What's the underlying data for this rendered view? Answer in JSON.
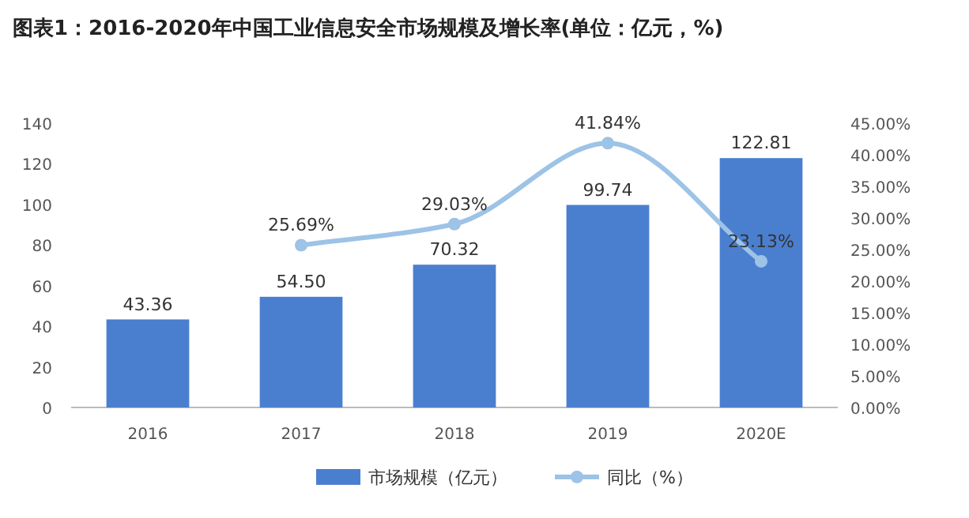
{
  "chart_data": {
    "type": "bar",
    "title": "图表1：2016-2020年中国工业信息安全市场规模及增长率(单位：亿元，%)",
    "categories": [
      "2016",
      "2017",
      "2018",
      "2019",
      "2020E"
    ],
    "series": [
      {
        "name": "市场规模（亿元）",
        "color": "#4a7fd0",
        "values": [
          43.36,
          54.5,
          70.32,
          99.74,
          122.81
        ],
        "value_labels": [
          "43.36",
          "54.50",
          "70.32",
          "99.74",
          "122.81"
        ]
      },
      {
        "name": "同比（%）",
        "type": "line",
        "axis": "y2",
        "color": "#9dc3e6",
        "values": [
          null,
          25.69,
          29.03,
          41.84,
          23.13
        ],
        "value_labels": [
          null,
          "25.69%",
          "29.03%",
          "41.84%",
          "23.13%"
        ]
      }
    ],
    "ylim": [
      0,
      140
    ],
    "yticks": [
      0,
      20,
      40,
      60,
      80,
      100,
      120,
      140
    ],
    "y2lim": [
      0,
      45
    ],
    "y2ticks": [
      {
        "value": 0,
        "label": "0.00%"
      },
      {
        "value": 5,
        "label": "5.00%"
      },
      {
        "value": 10,
        "label": "10.00%"
      },
      {
        "value": 15,
        "label": "15.00%"
      },
      {
        "value": 20,
        "label": "20.00%"
      },
      {
        "value": 25,
        "label": "25.00%"
      },
      {
        "value": 30,
        "label": "30.00%"
      },
      {
        "value": 35,
        "label": "35.00%"
      },
      {
        "value": 40,
        "label": "40.00%"
      },
      {
        "value": 45,
        "label": "45.00%"
      }
    ],
    "legend": "bottom",
    "marker": "circle",
    "grid": false
  }
}
